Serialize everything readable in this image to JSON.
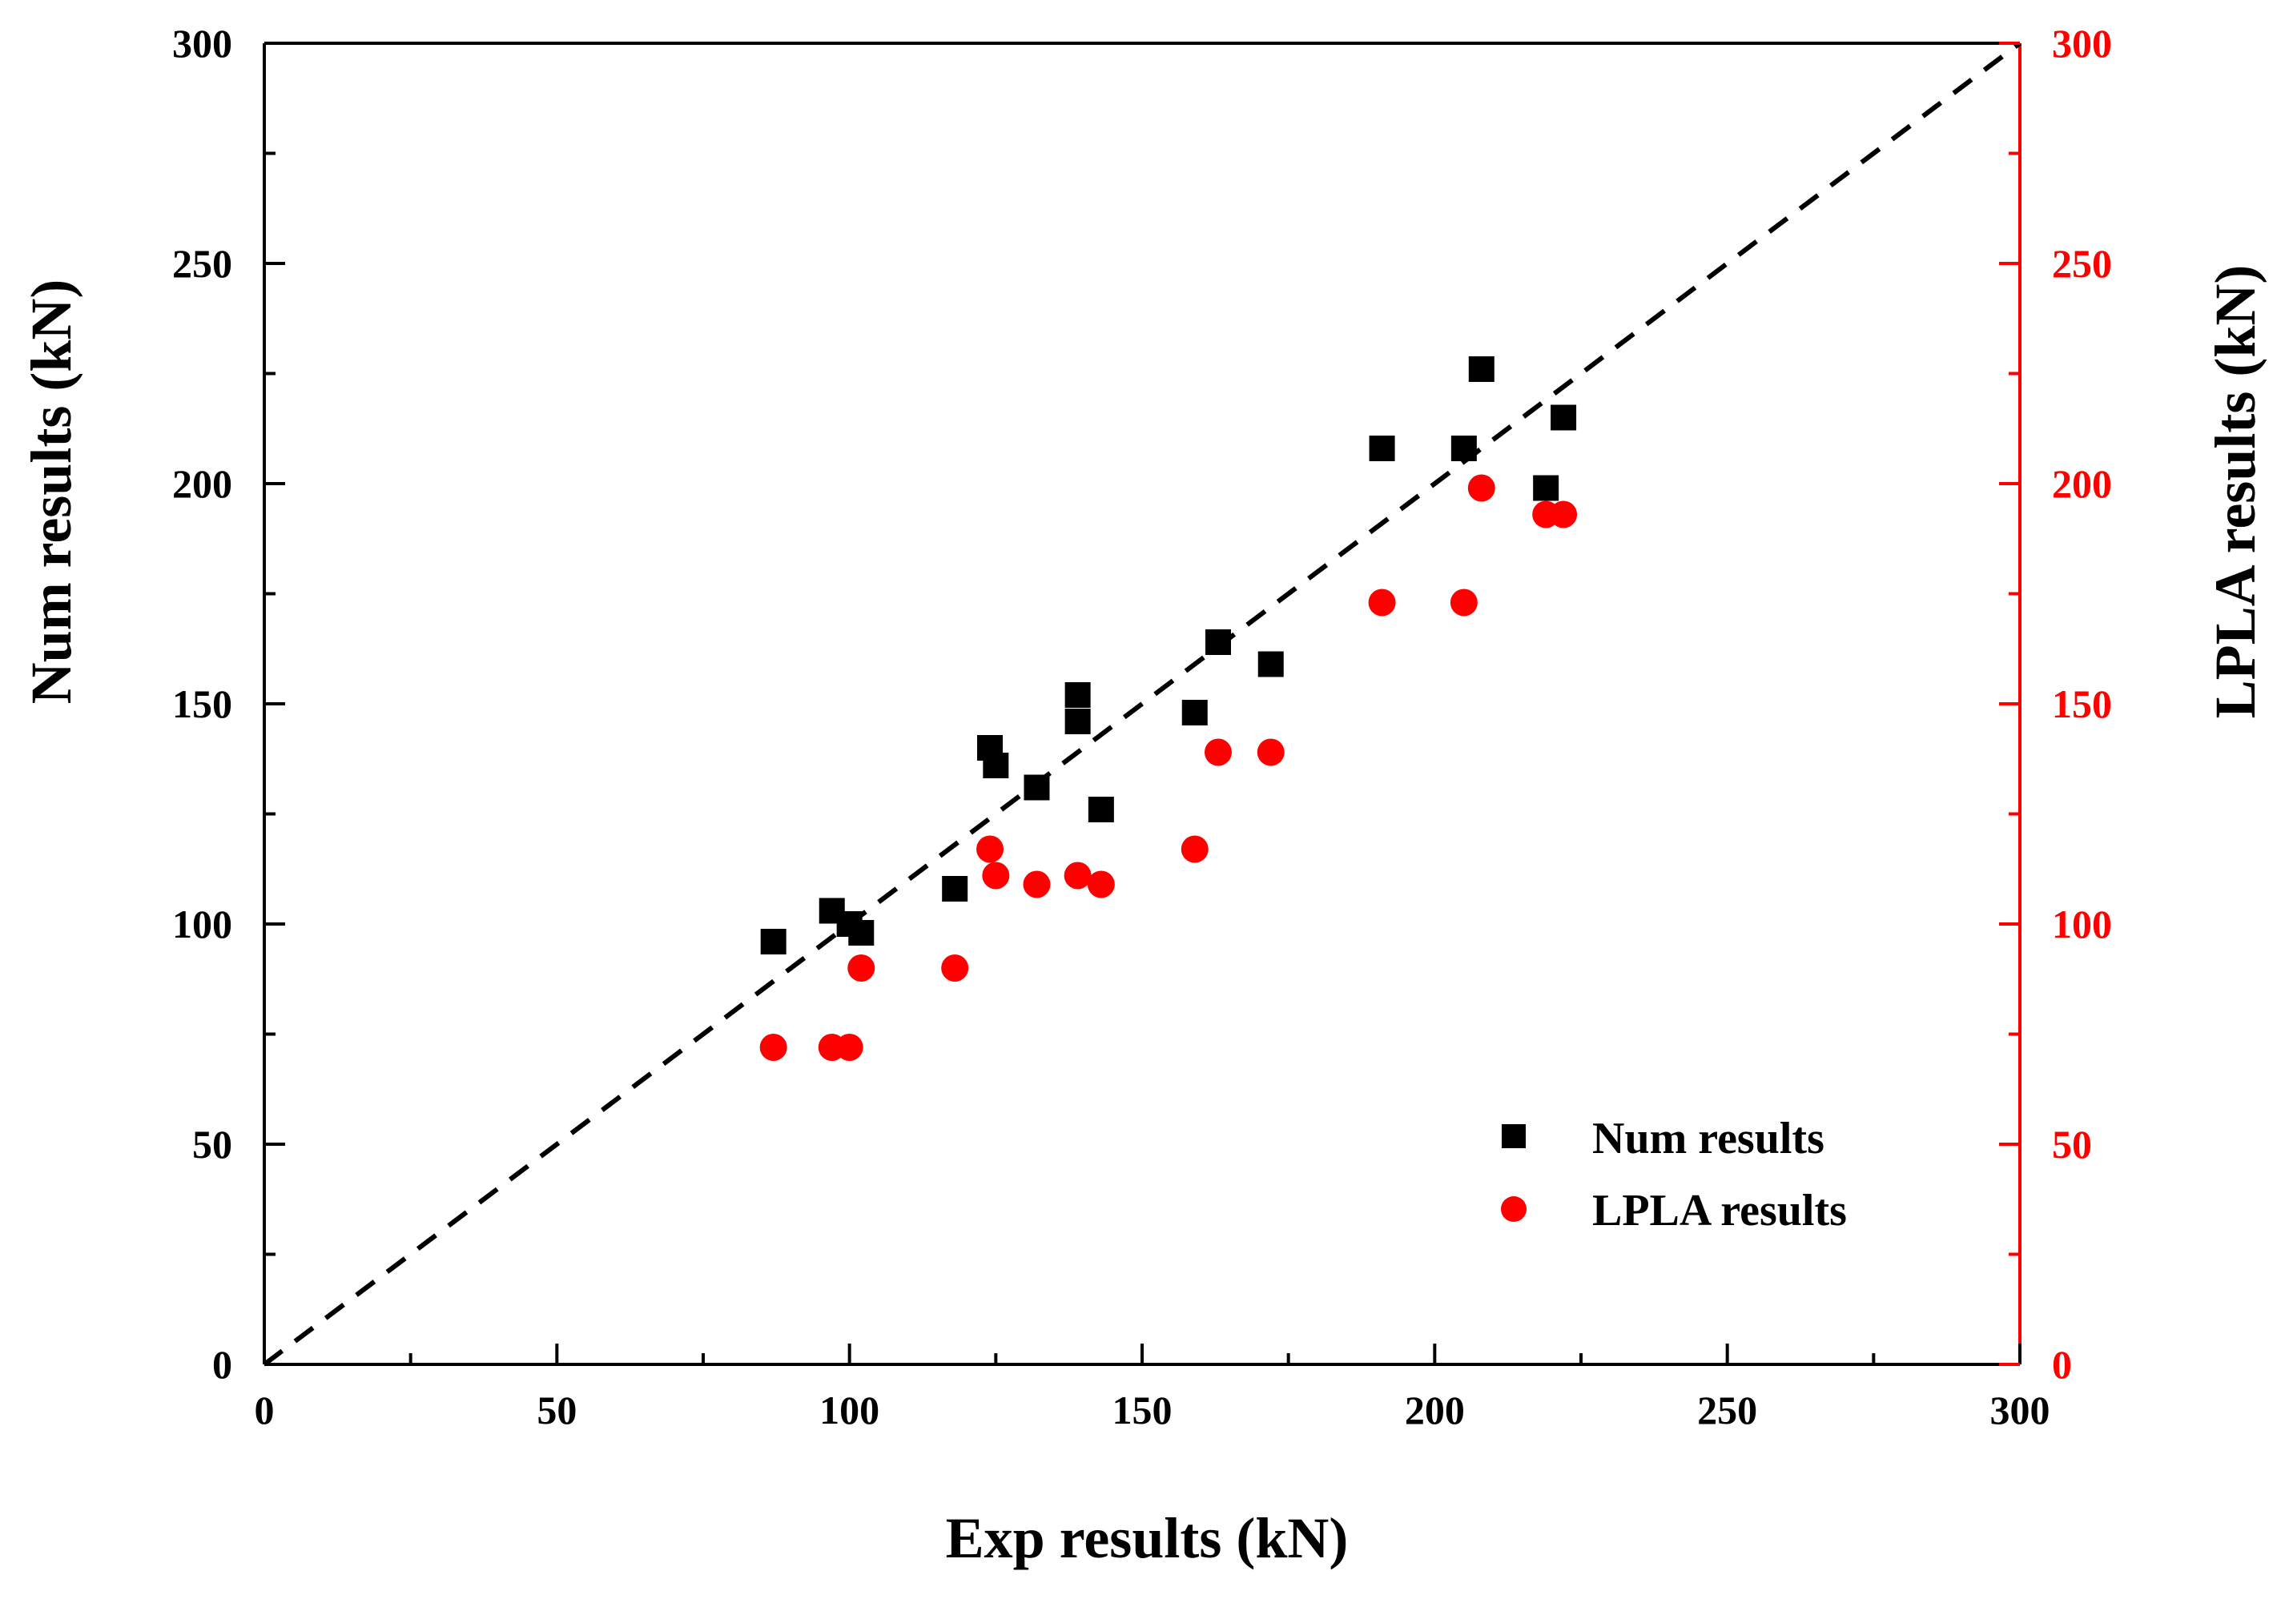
{
  "chart_data": {
    "type": "scatter",
    "title": "",
    "xlabel": "Exp results (kN)",
    "ylabel": "Num results (kN)",
    "y2label": "LPLA results (kN)",
    "xlim": [
      0,
      300
    ],
    "ylim": [
      0,
      300
    ],
    "y2lim": [
      0,
      300
    ],
    "xticks": [
      "0",
      "50",
      "100",
      "150",
      "200",
      "250",
      "300"
    ],
    "yticks": [
      "0",
      "50",
      "100",
      "150",
      "200",
      "250",
      "300"
    ],
    "y2ticks": [
      "0",
      "50",
      "100",
      "150",
      "200",
      "250",
      "300"
    ],
    "grid": false,
    "legend_position": "bottom-right",
    "reference_line": {
      "name": "y = x",
      "from": [
        0,
        0
      ],
      "to": [
        300,
        300
      ],
      "style": "dashed",
      "color": "#000000"
    },
    "series": [
      {
        "name": "Num results",
        "marker": "square",
        "color": "#000000",
        "axis": "left",
        "x": [
          87,
          97,
          100,
          102,
          118,
          124,
          125,
          132,
          139,
          139,
          143,
          159,
          163,
          172,
          191,
          205,
          208,
          219,
          222
        ],
        "y": [
          96,
          103,
          100,
          98,
          108,
          140,
          136,
          131,
          146,
          152,
          126,
          148,
          164,
          159,
          208,
          208,
          226,
          199,
          215
        ]
      },
      {
        "name": "LPLA results",
        "marker": "circle",
        "color": "#ff0000",
        "axis": "right",
        "x": [
          87,
          97,
          100,
          102,
          118,
          124,
          125,
          132,
          139,
          143,
          159,
          163,
          172,
          191,
          205,
          208,
          219,
          222
        ],
        "y": [
          72,
          72,
          72,
          90,
          90,
          117,
          111,
          109,
          111,
          109,
          117,
          139,
          139,
          173,
          173,
          199,
          193,
          193
        ]
      }
    ]
  }
}
